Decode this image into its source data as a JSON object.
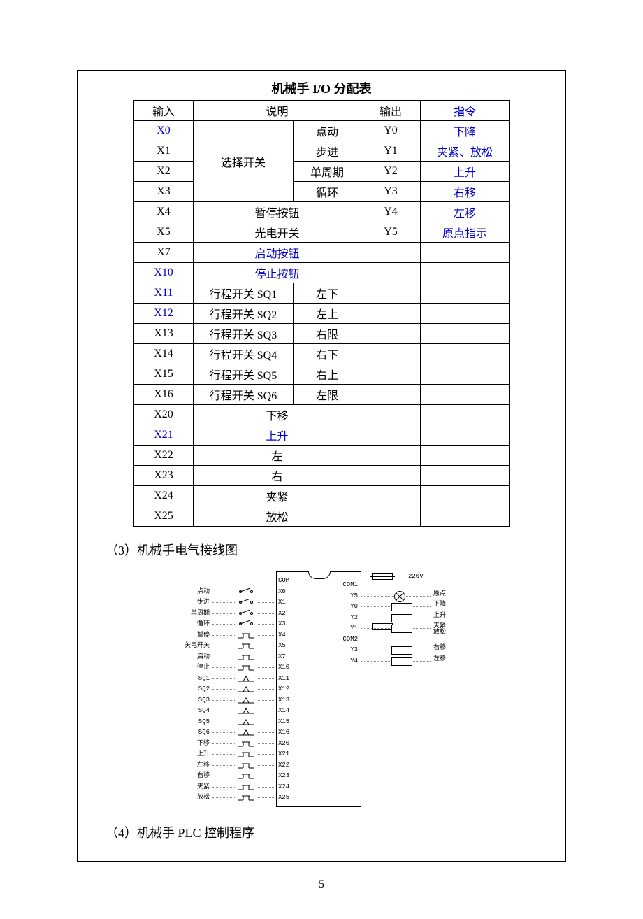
{
  "colors": {
    "link": "#0000cc",
    "border": "#000000",
    "bg": "#ffffff"
  },
  "table": {
    "title": "机械手 I/O 分配表",
    "headers": {
      "in": "输入",
      "desc": "说明",
      "out": "输出",
      "cmd": "指令"
    },
    "select_switch_label": "选择开关",
    "link_cells": [
      "X0",
      "X10",
      "X11",
      "X12",
      "X21",
      "指令",
      "下降",
      "夹紧、放松",
      "上升",
      "右移",
      "左移",
      "原点指示",
      "启动按钮",
      "停止按钮",
      "上升"
    ],
    "rows": [
      {
        "in": "X0",
        "desc": "选择开关",
        "mode": "点动",
        "out": "Y0",
        "cmd": "下降",
        "merge_start": true
      },
      {
        "in": "X1",
        "mode": "步进",
        "out": "Y1",
        "cmd": "夹紧、放松"
      },
      {
        "in": "X2",
        "mode": "单周期",
        "out": "Y2",
        "cmd": "上升"
      },
      {
        "in": "X3",
        "mode": "循环",
        "out": "Y3",
        "cmd": "右移",
        "merge_end": true
      },
      {
        "in": "X4",
        "desc_span": "暂停按钮",
        "out": "Y4",
        "cmd": "左移"
      },
      {
        "in": "X5",
        "desc_span": "光电开关",
        "out": "Y5",
        "cmd": "原点指示"
      },
      {
        "in": "X7",
        "desc_span": "启动按钮",
        "out": "",
        "cmd": ""
      },
      {
        "in": "X10",
        "desc_span": "停止按钮",
        "out": "",
        "cmd": ""
      },
      {
        "in": "X11",
        "desc": "行程开关 SQ1",
        "mode": "左下",
        "out": "",
        "cmd": ""
      },
      {
        "in": "X12",
        "desc": "行程开关 SQ2",
        "mode": "左上",
        "out": "",
        "cmd": ""
      },
      {
        "in": "X13",
        "desc": "行程开关 SQ3",
        "mode": "右限",
        "out": "",
        "cmd": ""
      },
      {
        "in": "X14",
        "desc": "行程开关 SQ4",
        "mode": "右下",
        "out": "",
        "cmd": ""
      },
      {
        "in": "X15",
        "desc": "行程开关 SQ5",
        "mode": "右上",
        "out": "",
        "cmd": ""
      },
      {
        "in": "X16",
        "desc": "行程开关 SQ6",
        "mode": "左限",
        "out": "",
        "cmd": ""
      },
      {
        "in": "X20",
        "desc_span": "下移",
        "out": "",
        "cmd": ""
      },
      {
        "in": "X21",
        "desc_span": "上升",
        "out": "",
        "cmd": ""
      },
      {
        "in": "X22",
        "desc_span": "左",
        "out": "",
        "cmd": ""
      },
      {
        "in": "X23",
        "desc_span": "右",
        "out": "",
        "cmd": ""
      },
      {
        "in": "X24",
        "desc_span": "夹紧",
        "out": "",
        "cmd": ""
      },
      {
        "in": "X25",
        "desc_span": "放松",
        "out": "",
        "cmd": ""
      }
    ]
  },
  "sections": {
    "s3": "（3）机械手电气接线图",
    "s4": "（4）机械手 PLC 控制程序"
  },
  "diagram": {
    "left": [
      {
        "lbl": "",
        "pin": "COM",
        "sym": ""
      },
      {
        "lbl": "点动",
        "pin": "X0",
        "sym": "sel"
      },
      {
        "lbl": "步进",
        "pin": "X1",
        "sym": "sel"
      },
      {
        "lbl": "单周期",
        "pin": "X2",
        "sym": "sel"
      },
      {
        "lbl": "循环",
        "pin": "X3",
        "sym": "sel"
      },
      {
        "lbl": "暂停",
        "pin": "X4",
        "sym": "btn"
      },
      {
        "lbl": "关电开关",
        "pin": "X5",
        "sym": "btn"
      },
      {
        "lbl": "启动",
        "pin": "X7",
        "sym": "btn"
      },
      {
        "lbl": "停止",
        "pin": "X10",
        "sym": "btn"
      },
      {
        "lbl": "SQ1",
        "pin": "X11",
        "sym": "limit"
      },
      {
        "lbl": "SQ2",
        "pin": "X12",
        "sym": "limit"
      },
      {
        "lbl": "SQ3",
        "pin": "X13",
        "sym": "limit"
      },
      {
        "lbl": "SQ4",
        "pin": "X14",
        "sym": "limit"
      },
      {
        "lbl": "SQ5",
        "pin": "X15",
        "sym": "limit"
      },
      {
        "lbl": "SQ6",
        "pin": "X16",
        "sym": "limit"
      },
      {
        "lbl": "下移",
        "pin": "X20",
        "sym": "btn"
      },
      {
        "lbl": "上升",
        "pin": "X21",
        "sym": "btn"
      },
      {
        "lbl": "左移",
        "pin": "X22",
        "sym": "btn"
      },
      {
        "lbl": "右移",
        "pin": "X23",
        "sym": "btn"
      },
      {
        "lbl": "夹紧",
        "pin": "X24",
        "sym": "btn"
      },
      {
        "lbl": "放松",
        "pin": "X25",
        "sym": "btn"
      }
    ],
    "right_header": {
      "fu1": "FU1",
      "v": "220V",
      "fu2": "FU2"
    },
    "right": [
      {
        "pin": "COM1",
        "lbl": "",
        "shape": ""
      },
      {
        "pin": "Y5",
        "lbl": "原点",
        "shape": "lamp"
      },
      {
        "pin": "Y0",
        "lbl": "下降",
        "shape": "box"
      },
      {
        "pin": "Y2",
        "lbl": "上升",
        "shape": "box"
      },
      {
        "pin": "Y1",
        "lbl": "夹紧\n放松",
        "shape": "box"
      },
      {
        "pin": "COM2",
        "lbl": "",
        "shape": ""
      },
      {
        "pin": "Y3",
        "lbl": "右移",
        "shape": "box"
      },
      {
        "pin": "Y4",
        "lbl": "左移",
        "shape": "box"
      }
    ]
  },
  "page_number": "5"
}
